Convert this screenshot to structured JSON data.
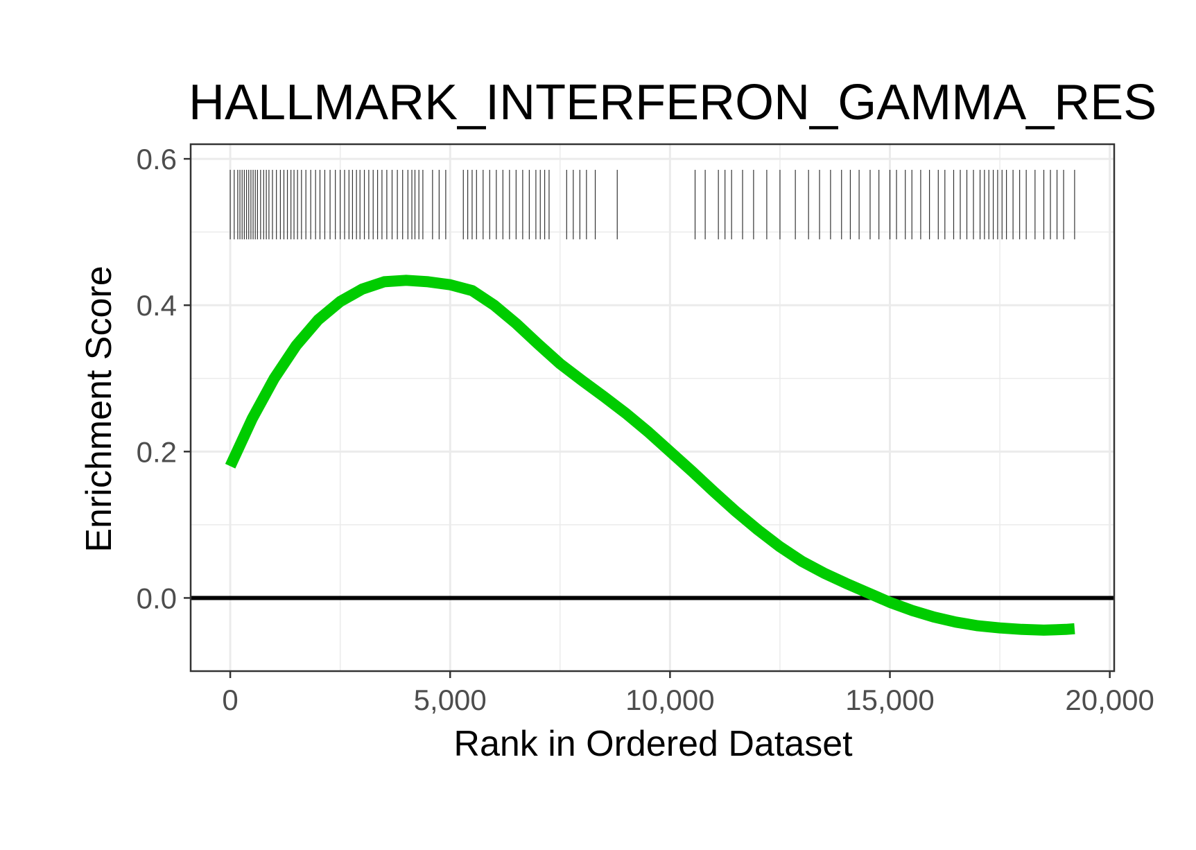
{
  "chart_data": {
    "type": "line",
    "title": "HALLMARK_INTERFERON_GAMMA_RES",
    "xlabel": "Rank in Ordered Dataset",
    "ylabel": "Enrichment Score",
    "xlim": [
      -900,
      20100
    ],
    "ylim": [
      -0.1,
      0.62
    ],
    "x_ticks": [
      0,
      5000,
      10000,
      15000,
      20000
    ],
    "x_tick_labels": [
      "0",
      "5,000",
      "10,000",
      "15,000",
      "20,000"
    ],
    "y_ticks": [
      0.0,
      0.2,
      0.4,
      0.6
    ],
    "y_tick_labels": [
      "0.0",
      "0.2",
      "0.4",
      "0.6"
    ],
    "grid": true,
    "legend": "none",
    "colors": {
      "curve": "#00cc00",
      "zero_line": "#000000",
      "hits": "#333333",
      "grid": "#ebebeb",
      "panel_border": "#333333"
    },
    "zero_line": 0,
    "series": [
      {
        "x": [
          0,
          500,
          1000,
          1500,
          2000,
          2500,
          3000,
          3500,
          4000,
          4500,
          5000,
          5500,
          6000,
          6500,
          7000,
          7500,
          8000,
          8500,
          9000,
          9500,
          10000,
          10500,
          11000,
          11500,
          12000,
          12500,
          13000,
          13500,
          14000,
          14500,
          15000,
          15500,
          16000,
          16500,
          17000,
          17500,
          18000,
          18500,
          19000,
          19200
        ],
        "values": [
          0.18,
          0.245,
          0.3,
          0.345,
          0.38,
          0.405,
          0.422,
          0.432,
          0.434,
          0.432,
          0.428,
          0.42,
          0.4,
          0.375,
          0.347,
          0.32,
          0.297,
          0.275,
          0.252,
          0.227,
          0.2,
          0.173,
          0.145,
          0.118,
          0.093,
          0.07,
          0.05,
          0.034,
          0.02,
          0.007,
          -0.006,
          -0.017,
          -0.026,
          -0.033,
          -0.038,
          -0.041,
          -0.043,
          -0.044,
          -0.043,
          -0.042
        ]
      }
    ],
    "hits": {
      "y_range": [
        0.49,
        0.585
      ],
      "positions": [
        0,
        90,
        170,
        220,
        270,
        320,
        370,
        420,
        470,
        520,
        570,
        620,
        690,
        760,
        820,
        880,
        960,
        1050,
        1140,
        1220,
        1300,
        1380,
        1450,
        1530,
        1620,
        1720,
        1830,
        1940,
        2040,
        2150,
        2270,
        2390,
        2500,
        2600,
        2700,
        2780,
        2870,
        2950,
        3050,
        3150,
        3250,
        3350,
        3450,
        3560,
        3680,
        3800,
        3920,
        4040,
        4130,
        4200,
        4290,
        4380,
        4600,
        4750,
        4900,
        5300,
        5400,
        5500,
        5600,
        5750,
        5900,
        6050,
        6200,
        6350,
        6500,
        6650,
        6800,
        6950,
        7050,
        7150,
        7250,
        7650,
        7800,
        7950,
        8100,
        8300,
        8800,
        10570,
        10800,
        11100,
        11250,
        11400,
        11650,
        11900,
        12200,
        12500,
        12850,
        13150,
        13400,
        13650,
        13900,
        14100,
        14300,
        14550,
        14750,
        15000,
        15150,
        15350,
        15500,
        15700,
        15900,
        16100,
        16250,
        16450,
        16600,
        16750,
        16900,
        17050,
        17150,
        17250,
        17350,
        17450,
        17550,
        17650,
        17800,
        17950,
        18100,
        18300,
        18500,
        18650,
        18800,
        18950,
        19200
      ]
    }
  }
}
